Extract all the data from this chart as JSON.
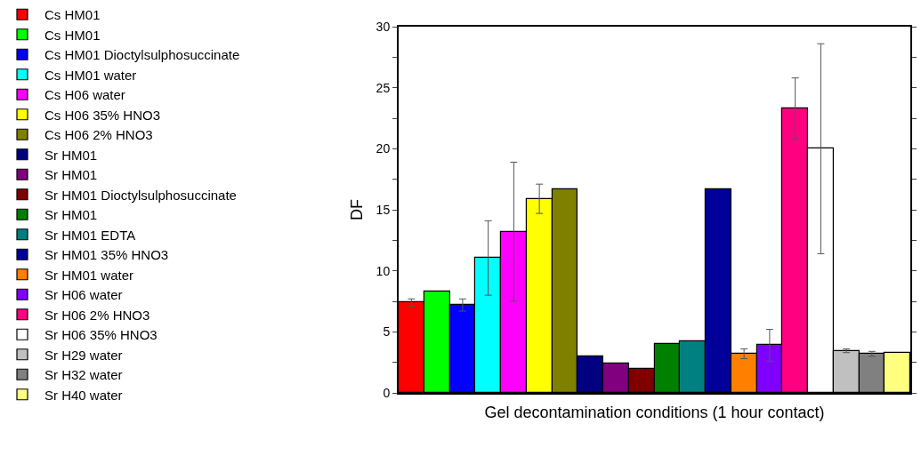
{
  "chart_data": {
    "type": "bar",
    "xlabel": "Gel decontamination conditions (1 hour contact)",
    "ylabel": "DF",
    "categories": [
      null,
      null,
      null,
      null,
      null,
      null,
      null,
      null,
      null,
      null,
      null,
      null,
      null,
      null,
      null,
      null,
      null,
      null,
      null,
      null
    ],
    "ylim": [
      0,
      30
    ],
    "yticks": [
      0,
      {
        "value": 2.5,
        "label": null
      },
      5,
      {
        "value": 7.5,
        "label": null
      },
      10,
      {
        "value": 12.5,
        "label": null
      },
      15,
      {
        "value": 17.5,
        "label": null
      },
      20,
      {
        "value": 22.5,
        "label": null
      },
      25,
      {
        "value": 27.5,
        "label": null
      },
      30
    ],
    "grid": false,
    "legend": "left",
    "series": [
      {
        "name": "Cs HM01",
        "color": "#ff0000",
        "values": [
          7.4,
          null,
          null,
          null,
          null,
          null,
          null,
          null,
          null,
          null,
          null,
          null,
          null,
          null,
          null,
          null,
          null,
          null,
          null,
          null
        ],
        "errors": [
          [
            7.1,
            7.7
          ],
          null,
          null,
          null,
          null,
          null,
          null,
          null,
          null,
          null,
          null,
          null,
          null,
          null,
          null,
          null,
          null,
          null,
          null,
          null
        ]
      },
      {
        "name": "Cs HM01",
        "color": "#00ff00",
        "values": [
          null,
          8.3,
          null,
          null,
          null,
          null,
          null,
          null,
          null,
          null,
          null,
          null,
          null,
          null,
          null,
          null,
          null,
          null,
          null,
          null
        ]
      },
      {
        "name": "Cs HM01 Dioctylsulphosuccinate",
        "color": "#0000ff",
        "values": [
          null,
          null,
          7.2,
          null,
          null,
          null,
          null,
          null,
          null,
          null,
          null,
          null,
          null,
          null,
          null,
          null,
          null,
          null,
          null,
          null
        ],
        "errors": [
          null,
          null,
          [
            6.7,
            7.7
          ],
          null,
          null,
          null,
          null,
          null,
          null,
          null,
          null,
          null,
          null,
          null,
          null,
          null,
          null,
          null,
          null,
          null
        ]
      },
      {
        "name": "Cs HM01 water",
        "color": "#00ffff",
        "values": [
          null,
          null,
          null,
          11.1,
          null,
          null,
          null,
          null,
          null,
          null,
          null,
          null,
          null,
          null,
          null,
          null,
          null,
          null,
          null,
          null
        ],
        "errors": [
          null,
          null,
          null,
          [
            8.0,
            14.1
          ],
          null,
          null,
          null,
          null,
          null,
          null,
          null,
          null,
          null,
          null,
          null,
          null,
          null,
          null,
          null,
          null
        ]
      },
      {
        "name": "Cs H06 water",
        "color": "#ff00ff",
        "values": [
          null,
          null,
          null,
          null,
          13.2,
          null,
          null,
          null,
          null,
          null,
          null,
          null,
          null,
          null,
          null,
          null,
          null,
          null,
          null,
          null
        ],
        "errors": [
          null,
          null,
          null,
          null,
          [
            7.5,
            18.9
          ],
          null,
          null,
          null,
          null,
          null,
          null,
          null,
          null,
          null,
          null,
          null,
          null,
          null,
          null,
          null
        ]
      },
      {
        "name": "Cs H06 35% HNO3",
        "color": "#ffff00",
        "values": [
          null,
          null,
          null,
          null,
          null,
          15.9,
          null,
          null,
          null,
          null,
          null,
          null,
          null,
          null,
          null,
          null,
          null,
          null,
          null,
          null
        ],
        "errors": [
          null,
          null,
          null,
          null,
          null,
          [
            14.7,
            17.1
          ],
          null,
          null,
          null,
          null,
          null,
          null,
          null,
          null,
          null,
          null,
          null,
          null,
          null,
          null
        ]
      },
      {
        "name": "Cs H06 2% HNO3",
        "color": "#808000",
        "values": [
          null,
          null,
          null,
          null,
          null,
          null,
          16.7,
          null,
          null,
          null,
          null,
          null,
          null,
          null,
          null,
          null,
          null,
          null,
          null,
          null
        ]
      },
      {
        "name": "Sr HM01",
        "color": "#000080",
        "values": [
          null,
          null,
          null,
          null,
          null,
          null,
          null,
          3.0,
          null,
          null,
          null,
          null,
          null,
          null,
          null,
          null,
          null,
          null,
          null,
          null
        ]
      },
      {
        "name": "Sr HM01",
        "color": "#800080",
        "values": [
          null,
          null,
          null,
          null,
          null,
          null,
          null,
          null,
          2.4,
          null,
          null,
          null,
          null,
          null,
          null,
          null,
          null,
          null,
          null,
          null
        ]
      },
      {
        "name": "Sr HM01 Dioctylsulphosuccinate",
        "color": "#800000",
        "values": [
          null,
          null,
          null,
          null,
          null,
          null,
          null,
          null,
          null,
          2.0,
          null,
          null,
          null,
          null,
          null,
          null,
          null,
          null,
          null,
          null
        ]
      },
      {
        "name": "Sr HM01",
        "color": "#008000",
        "values": [
          null,
          null,
          null,
          null,
          null,
          null,
          null,
          null,
          null,
          null,
          4.0,
          null,
          null,
          null,
          null,
          null,
          null,
          null,
          null,
          null
        ]
      },
      {
        "name": "Sr HM01 EDTA",
        "color": "#008080",
        "values": [
          null,
          null,
          null,
          null,
          null,
          null,
          null,
          null,
          null,
          null,
          null,
          4.2,
          null,
          null,
          null,
          null,
          null,
          null,
          null,
          null
        ]
      },
      {
        "name": "Sr HM01 35% HNO3",
        "color": "#000099",
        "values": [
          null,
          null,
          null,
          null,
          null,
          null,
          null,
          null,
          null,
          null,
          null,
          null,
          16.7,
          null,
          null,
          null,
          null,
          null,
          null,
          null
        ]
      },
      {
        "name": "Sr HM01 water",
        "color": "#ff8000",
        "values": [
          null,
          null,
          null,
          null,
          null,
          null,
          null,
          null,
          null,
          null,
          null,
          null,
          null,
          3.2,
          null,
          null,
          null,
          null,
          null,
          null
        ],
        "errors": [
          null,
          null,
          null,
          null,
          null,
          null,
          null,
          null,
          null,
          null,
          null,
          null,
          null,
          [
            2.8,
            3.6
          ],
          null,
          null,
          null,
          null,
          null,
          null
        ]
      },
      {
        "name": "Sr H06 water",
        "color": "#8000ff",
        "values": [
          null,
          null,
          null,
          null,
          null,
          null,
          null,
          null,
          null,
          null,
          null,
          null,
          null,
          null,
          3.9,
          null,
          null,
          null,
          null,
          null
        ],
        "errors": [
          null,
          null,
          null,
          null,
          null,
          null,
          null,
          null,
          null,
          null,
          null,
          null,
          null,
          null,
          [
            2.6,
            5.2
          ],
          null,
          null,
          null,
          null,
          null
        ]
      },
      {
        "name": "Sr H06 2% HNO3",
        "color": "#ff0080",
        "values": [
          null,
          null,
          null,
          null,
          null,
          null,
          null,
          null,
          null,
          null,
          null,
          null,
          null,
          null,
          null,
          23.3,
          null,
          null,
          null,
          null
        ],
        "errors": [
          null,
          null,
          null,
          null,
          null,
          null,
          null,
          null,
          null,
          null,
          null,
          null,
          null,
          null,
          null,
          [
            20.8,
            25.8
          ],
          null,
          null,
          null,
          null
        ]
      },
      {
        "name": "Sr H06 35% HNO3",
        "color": "#ffffff",
        "values": [
          null,
          null,
          null,
          null,
          null,
          null,
          null,
          null,
          null,
          null,
          null,
          null,
          null,
          null,
          null,
          null,
          20.0,
          null,
          null,
          null
        ],
        "errors": [
          null,
          null,
          null,
          null,
          null,
          null,
          null,
          null,
          null,
          null,
          null,
          null,
          null,
          null,
          null,
          null,
          [
            11.4,
            28.6
          ],
          null,
          null,
          null
        ]
      },
      {
        "name": "Sr H29 water",
        "color": "#c0c0c0",
        "values": [
          null,
          null,
          null,
          null,
          null,
          null,
          null,
          null,
          null,
          null,
          null,
          null,
          null,
          null,
          null,
          null,
          null,
          3.4,
          null,
          null
        ],
        "errors": [
          null,
          null,
          null,
          null,
          null,
          null,
          null,
          null,
          null,
          null,
          null,
          null,
          null,
          null,
          null,
          null,
          null,
          [
            3.3,
            3.6
          ],
          null,
          null
        ]
      },
      {
        "name": "Sr H32 water",
        "color": "#808080",
        "values": [
          null,
          null,
          null,
          null,
          null,
          null,
          null,
          null,
          null,
          null,
          null,
          null,
          null,
          null,
          null,
          null,
          null,
          null,
          3.2,
          null
        ],
        "errors": [
          null,
          null,
          null,
          null,
          null,
          null,
          null,
          null,
          null,
          null,
          null,
          null,
          null,
          null,
          null,
          null,
          null,
          null,
          [
            3.0,
            3.4
          ],
          null
        ]
      },
      {
        "name": "Sr H40 water",
        "color": "#ffff80",
        "values": [
          null,
          null,
          null,
          null,
          null,
          null,
          null,
          null,
          null,
          null,
          null,
          null,
          null,
          null,
          null,
          null,
          null,
          null,
          null,
          3.3
        ]
      }
    ]
  }
}
